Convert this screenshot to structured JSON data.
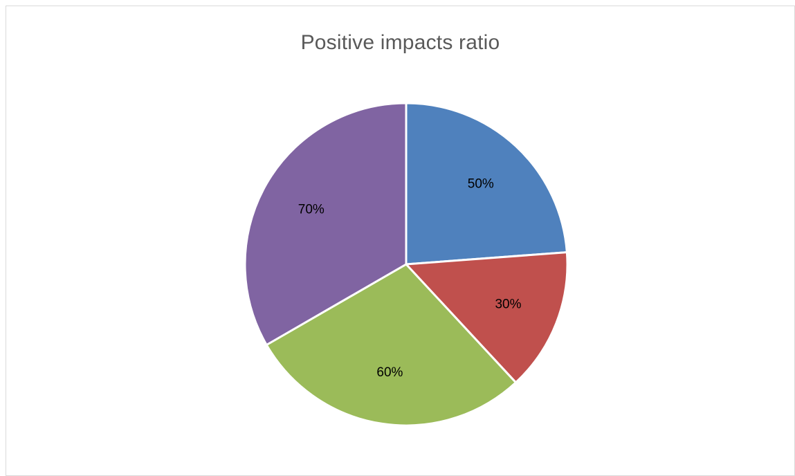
{
  "chart_data": {
    "type": "pie",
    "title": "Positive impacts ratio",
    "categories": [
      "",
      "",
      "",
      ""
    ],
    "values": [
      50,
      30,
      60,
      70
    ],
    "data_labels": [
      "50%",
      "30%",
      "60%",
      "70%"
    ],
    "colors": [
      "#4F81BD",
      "#C0504D",
      "#9BBB59",
      "#8064A2"
    ],
    "start_angle_deg": 0,
    "direction": "clockwise",
    "legend": "none"
  }
}
